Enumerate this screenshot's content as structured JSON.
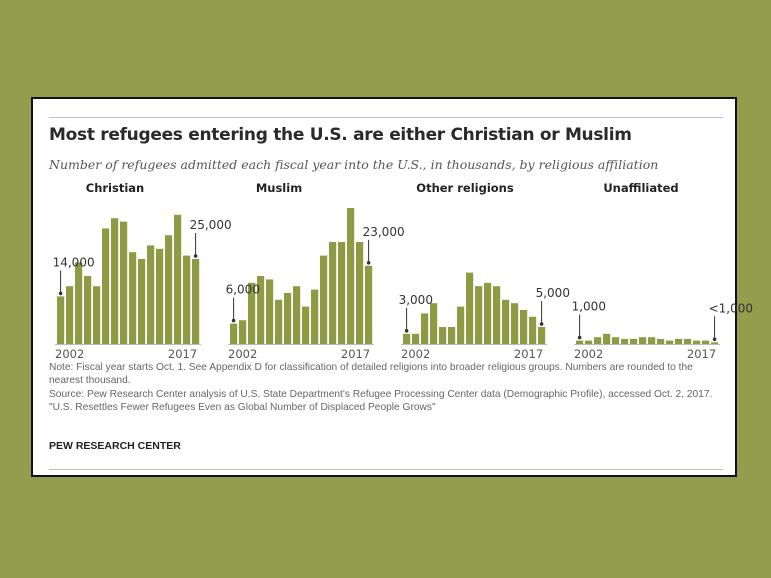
{
  "title": "Most refugees entering the U.S. are either Christian or Muslim",
  "subtitle": "Number of refugees admitted each fiscal year into the U.S., in thousands, by religious affiliation",
  "colors": {
    "bar": "#8f9a45",
    "background": "#929d4e",
    "text": "#333333"
  },
  "chart_data": [
    {
      "type": "bar",
      "title": "Christian",
      "categories": [
        "2002",
        "2003",
        "2004",
        "2005",
        "2006",
        "2007",
        "2008",
        "2009",
        "2010",
        "2011",
        "2012",
        "2013",
        "2014",
        "2015",
        "2016",
        "2017"
      ],
      "values": [
        14,
        17,
        24,
        20,
        17,
        34,
        37,
        36,
        27,
        25,
        29,
        28,
        32,
        38,
        26,
        25
      ],
      "ylim": [
        0,
        40
      ],
      "x_tick_labels": [
        "2002",
        "2017"
      ],
      "annotations": [
        {
          "category": "2002",
          "label": "14,000"
        },
        {
          "category": "2017",
          "label": "25,000"
        }
      ]
    },
    {
      "type": "bar",
      "title": "Muslim",
      "categories": [
        "2002",
        "2003",
        "2004",
        "2005",
        "2006",
        "2007",
        "2008",
        "2009",
        "2010",
        "2011",
        "2012",
        "2013",
        "2014",
        "2015",
        "2016",
        "2017"
      ],
      "values": [
        6,
        7,
        18,
        20,
        19,
        13,
        15,
        17,
        11,
        16,
        26,
        30,
        30,
        40,
        30,
        23
      ],
      "ylim": [
        0,
        40
      ],
      "x_tick_labels": [
        "2002",
        "2017"
      ],
      "annotations": [
        {
          "category": "2002",
          "label": "6,000"
        },
        {
          "category": "2017",
          "label": "23,000"
        }
      ]
    },
    {
      "type": "bar",
      "title": "Other religions",
      "categories": [
        "2002",
        "2003",
        "2004",
        "2005",
        "2006",
        "2007",
        "2008",
        "2009",
        "2010",
        "2011",
        "2012",
        "2013",
        "2014",
        "2015",
        "2016",
        "2017"
      ],
      "values": [
        3,
        3,
        9,
        12,
        5,
        5,
        11,
        21,
        17,
        18,
        17,
        13,
        12,
        10,
        8,
        5
      ],
      "ylim": [
        0,
        40
      ],
      "x_tick_labels": [
        "2002",
        "2017"
      ],
      "annotations": [
        {
          "category": "2002",
          "label": "3,000"
        },
        {
          "category": "2017",
          "label": "5,000"
        }
      ]
    },
    {
      "type": "bar",
      "title": "Unaffiliated",
      "categories": [
        "2002",
        "2003",
        "2004",
        "2005",
        "2006",
        "2007",
        "2008",
        "2009",
        "2010",
        "2011",
        "2012",
        "2013",
        "2014",
        "2015",
        "2016",
        "2017"
      ],
      "values": [
        1,
        1,
        2,
        3,
        2,
        1.5,
        1.5,
        2,
        2,
        1.5,
        1,
        1.5,
        1.5,
        1,
        1,
        0.5
      ],
      "ylim": [
        0,
        40
      ],
      "x_tick_labels": [
        "2002",
        "2017"
      ],
      "annotations": [
        {
          "category": "2002",
          "label": "1,000"
        },
        {
          "category": "2017",
          "label": "<1,000"
        }
      ]
    }
  ],
  "notes": [
    "Note: Fiscal year starts Oct. 1. See Appendix D for classification of detailed religions into broader religious groups. Numbers are rounded to the nearest thousand.",
    "Source: Pew Research Center analysis of U.S. State Department's Refugee Processing Center data (Demographic Profile), accessed Oct. 2, 2017.",
    "\"U.S. Resettles Fewer Refugees Even as Global Number of Displaced People Grows\""
  ],
  "source_org": "PEW RESEARCH CENTER"
}
